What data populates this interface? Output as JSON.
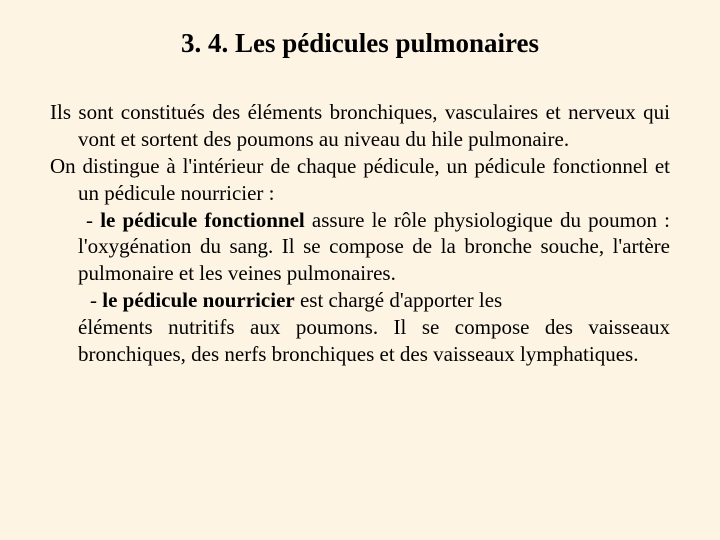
{
  "slide": {
    "background_color": "#fdf4e3",
    "text_color": "#000000",
    "font_family": "Times New Roman",
    "title_fontsize": 27,
    "body_fontsize": 21,
    "title": "3. 4. Les pédicules pulmonaires",
    "p1_lead": "Ils ",
    "p1_rest": "sont constitués des éléments bronchiques, vasculaires et nerveux qui vont et sortent des poumons au niveau du hile pulmonaire.",
    "p2_lead": "On ",
    "p2_rest": "distingue à l'intérieur de chaque pédicule, un pédicule fonctionnel et un pédicule nourricier :",
    "b1_dash": " -   ",
    "b1_bold": "le pédicule fonctionnel",
    "b1_rest": " assure le rôle physiologique du poumon : l'oxygénation du sang. Il se compose de la bronche souche, l'artère pulmonaire et les veines pulmonaires.",
    "b2_dash": " - ",
    "b2_bold": "le pédicule nourricier",
    "b2_line1_rest": " est chargé d'apporter les",
    "b2_cont": "éléments nutritifs aux poumons. Il se compose des vaisseaux bronchiques, des nerfs bronchiques et des vaisseaux lymphatiques."
  }
}
